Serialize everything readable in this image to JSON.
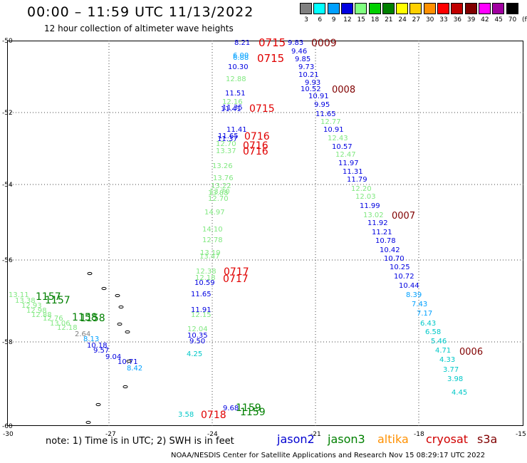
{
  "title": "00:00 – 11:59 UTC 11/13/2022",
  "subtitle": "12 hour collection of altimeter wave heights",
  "legend": {
    "unit": "(ft)",
    "bins": [
      {
        "label": "3",
        "color": "#808080"
      },
      {
        "label": "6",
        "color": "#00ffff"
      },
      {
        "label": "9",
        "color": "#00a0ff"
      },
      {
        "label": "12",
        "color": "#0000e0"
      },
      {
        "label": "15",
        "color": "#80ff80"
      },
      {
        "label": "18",
        "color": "#00d000"
      },
      {
        "label": "21",
        "color": "#008000"
      },
      {
        "label": "24",
        "color": "#ffff00"
      },
      {
        "label": "27",
        "color": "#ffd000"
      },
      {
        "label": "30",
        "color": "#ff9000"
      },
      {
        "label": "33",
        "color": "#ff0000"
      },
      {
        "label": "36",
        "color": "#c00000"
      },
      {
        "label": "39",
        "color": "#800000"
      },
      {
        "label": "42",
        "color": "#ff00ff"
      },
      {
        "label": "45",
        "color": "#a000a0"
      },
      {
        "label": "70",
        "color": "#000000"
      }
    ]
  },
  "axes": {
    "y_ticks": [
      "-50",
      "-52",
      "-54",
      "-56",
      "-58",
      "-60"
    ],
    "x_ticks": [
      "-30",
      "-27",
      "-24",
      "-21",
      "-18",
      "-15"
    ]
  },
  "note": "note: 1) Time is in UTC; 2) SWH is in feet",
  "satellites": [
    {
      "name": "jason2",
      "color": "#0000d0"
    },
    {
      "name": "jason3",
      "color": "#008000"
    },
    {
      "name": "altika",
      "color": "#ff9000"
    },
    {
      "name": "cryosat",
      "color": "#d00000"
    },
    {
      "name": "s3a",
      "color": "#800000"
    }
  ],
  "credit": "NOAA/NESDIS Center for Satellite Applications and Research    Nov 15 08:29:17 UTC 2022",
  "map": {
    "wave_labels": [
      {
        "text": "8.21",
        "color": "#0000e0"
      },
      {
        "text": "6.00",
        "color": "#00a0ff"
      },
      {
        "text": "6.88",
        "color": "#00a0ff"
      },
      {
        "text": "10.30",
        "color": "#0000e0"
      },
      {
        "text": "12.88",
        "color": "#80e880"
      },
      {
        "text": "11.51",
        "color": "#0000e0"
      },
      {
        "text": "12.16",
        "color": "#80e880"
      },
      {
        "text": "11.35",
        "color": "#0000e0"
      },
      {
        "text": "11.41",
        "color": "#0000e0"
      },
      {
        "text": "11.41",
        "color": "#0000e0"
      },
      {
        "text": "11.65",
        "color": "#0000e0"
      },
      {
        "text": "11.37",
        "color": "#0000e0"
      },
      {
        "text": "12.70",
        "color": "#80e880"
      },
      {
        "text": "13.37",
        "color": "#80e880"
      },
      {
        "text": "13.26",
        "color": "#80e880"
      },
      {
        "text": "13.76",
        "color": "#80e880"
      },
      {
        "text": "13.22",
        "color": "#80e880"
      },
      {
        "text": "13.70",
        "color": "#80e880"
      },
      {
        "text": "13.88",
        "color": "#80e880"
      },
      {
        "text": "12.70",
        "color": "#80e880"
      },
      {
        "text": "14.97",
        "color": "#80e880"
      },
      {
        "text": "14.10",
        "color": "#80e880"
      },
      {
        "text": "12.78",
        "color": "#80e880"
      },
      {
        "text": "13.19",
        "color": "#80e880"
      },
      {
        "text": "13.47",
        "color": "#80e880"
      },
      {
        "text": "12.38",
        "color": "#80e880"
      },
      {
        "text": "12.18",
        "color": "#80e880"
      },
      {
        "text": "10.59",
        "color": "#0000e0"
      },
      {
        "text": "11.65",
        "color": "#0000e0"
      },
      {
        "text": "11.91",
        "color": "#0000e0"
      },
      {
        "text": "12.15",
        "color": "#80e880"
      },
      {
        "text": "12.04",
        "color": "#80e880"
      },
      {
        "text": "10.35",
        "color": "#0000e0"
      },
      {
        "text": "9.50",
        "color": "#0000e0"
      },
      {
        "text": "4.25",
        "color": "#00c8c8"
      },
      {
        "text": "9.68",
        "color": "#0000e0"
      },
      {
        "text": "3.58",
        "color": "#00c8c8"
      },
      {
        "text": "9.83",
        "color": "#0000e0"
      },
      {
        "text": "9.46",
        "color": "#0000e0"
      },
      {
        "text": "9.85",
        "color": "#0000e0"
      },
      {
        "text": "9.73",
        "color": "#0000e0"
      },
      {
        "text": "10.21",
        "color": "#0000e0"
      },
      {
        "text": "9.93",
        "color": "#0000e0"
      },
      {
        "text": "10.52",
        "color": "#0000e0"
      },
      {
        "text": "10.91",
        "color": "#0000e0"
      },
      {
        "text": "9.95",
        "color": "#0000e0"
      },
      {
        "text": "11.65",
        "color": "#0000e0"
      },
      {
        "text": "12.77",
        "color": "#80e880"
      },
      {
        "text": "10.91",
        "color": "#0000e0"
      },
      {
        "text": "12.43",
        "color": "#80e880"
      },
      {
        "text": "10.57",
        "color": "#0000e0"
      },
      {
        "text": "12.47",
        "color": "#80e880"
      },
      {
        "text": "11.97",
        "color": "#0000e0"
      },
      {
        "text": "11.31",
        "color": "#0000e0"
      },
      {
        "text": "11.79",
        "color": "#0000e0"
      },
      {
        "text": "12.20",
        "color": "#80e880"
      },
      {
        "text": "12.03",
        "color": "#80e880"
      },
      {
        "text": "11.99",
        "color": "#0000e0"
      },
      {
        "text": "13.02",
        "color": "#80e880"
      },
      {
        "text": "11.92",
        "color": "#0000e0"
      },
      {
        "text": "11.21",
        "color": "#0000e0"
      },
      {
        "text": "10.78",
        "color": "#0000e0"
      },
      {
        "text": "10.42",
        "color": "#0000e0"
      },
      {
        "text": "10.70",
        "color": "#0000e0"
      },
      {
        "text": "10.25",
        "color": "#0000e0"
      },
      {
        "text": "10.72",
        "color": "#0000e0"
      },
      {
        "text": "10.44",
        "color": "#0000e0"
      },
      {
        "text": "8.39",
        "color": "#00a0ff"
      },
      {
        "text": "7.43",
        "color": "#00a0ff"
      },
      {
        "text": "7.17",
        "color": "#00a0ff"
      },
      {
        "text": "6.43",
        "color": "#00c8c8"
      },
      {
        "text": "6.58",
        "color": "#00c8c8"
      },
      {
        "text": "5.46",
        "color": "#00c8c8"
      },
      {
        "text": "4.71",
        "color": "#00c8c8"
      },
      {
        "text": "4.33",
        "color": "#00c8c8"
      },
      {
        "text": "3.77",
        "color": "#00c8c8"
      },
      {
        "text": "3.98",
        "color": "#00c8c8"
      },
      {
        "text": "4.45",
        "color": "#00c8c8"
      },
      {
        "text": "13.11",
        "color": "#80e880"
      },
      {
        "text": "13.38",
        "color": "#80e880"
      },
      {
        "text": "12.93",
        "color": "#80e880"
      },
      {
        "text": "12.98",
        "color": "#80e880"
      },
      {
        "text": "12.88",
        "color": "#80e880"
      },
      {
        "text": "12.76",
        "color": "#80e880"
      },
      {
        "text": "13.06",
        "color": "#80e880"
      },
      {
        "text": "12.18",
        "color": "#80e880"
      },
      {
        "text": "2.64",
        "color": "#808080"
      },
      {
        "text": "8.13",
        "color": "#00a0ff"
      },
      {
        "text": "10.18",
        "color": "#0000e0"
      },
      {
        "text": "9.57",
        "color": "#0000e0"
      },
      {
        "text": "9.04",
        "color": "#0000e0"
      },
      {
        "text": "10.71",
        "color": "#0000e0"
      },
      {
        "text": "8.42",
        "color": "#00a0ff"
      }
    ],
    "time_labels": [
      {
        "text": "0715",
        "color": "#e00000"
      },
      {
        "text": "0715",
        "color": "#e00000"
      },
      {
        "text": "0715",
        "color": "#e00000"
      },
      {
        "text": "0716",
        "color": "#e00000"
      },
      {
        "text": "0716",
        "color": "#e00000"
      },
      {
        "text": "0716",
        "color": "#e00000"
      },
      {
        "text": "0717",
        "color": "#e00000"
      },
      {
        "text": "0717",
        "color": "#e00000"
      },
      {
        "text": "0718",
        "color": "#e00000"
      },
      {
        "text": "0009",
        "color": "#800000"
      },
      {
        "text": "0008",
        "color": "#800000"
      },
      {
        "text": "0007",
        "color": "#800000"
      },
      {
        "text": "0006",
        "color": "#800000"
      },
      {
        "text": "1157",
        "color": "#008000"
      },
      {
        "text": "1157",
        "color": "#008000"
      },
      {
        "text": "1158",
        "color": "#008000"
      },
      {
        "text": "1158",
        "color": "#008000"
      },
      {
        "text": "1159",
        "color": "#008000"
      },
      {
        "text": "1159",
        "color": "#008000"
      }
    ]
  }
}
